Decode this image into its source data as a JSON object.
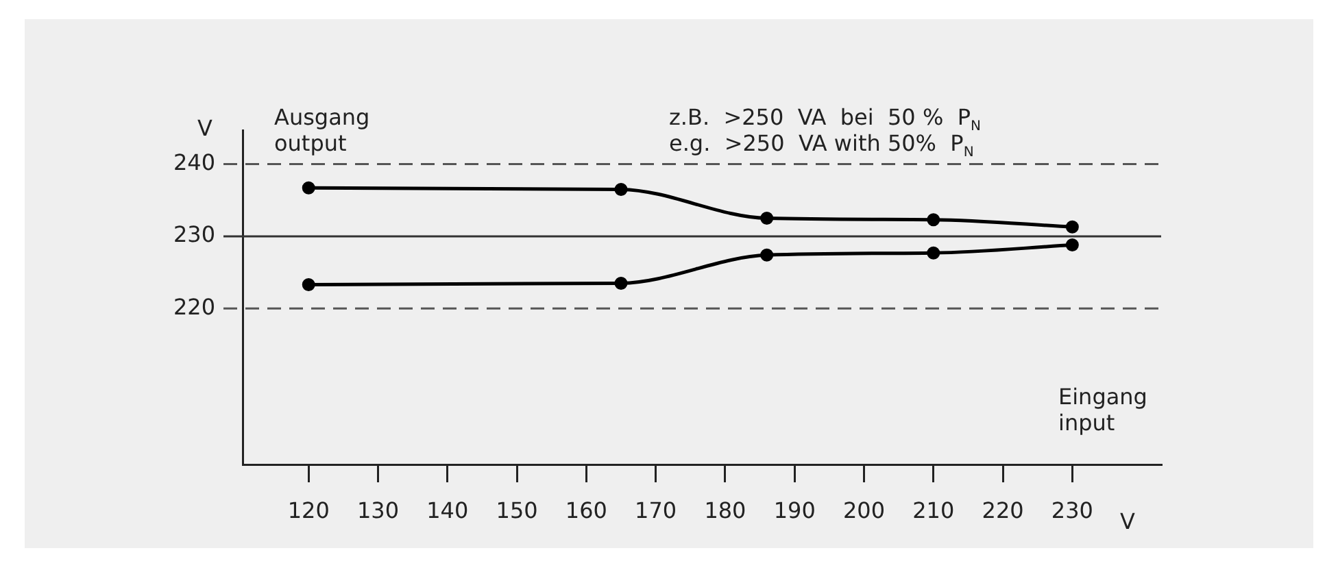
{
  "chart_data": {
    "type": "line",
    "xlabel": "V",
    "ylabel": "V",
    "x": [
      120,
      165,
      186,
      210,
      230
    ],
    "series": [
      {
        "color": "#000000",
        "values": [
          236.7,
          236.5,
          232.5,
          232.3,
          231.3
        ]
      },
      {
        "color": "#000000",
        "values": [
          223.3,
          223.5,
          227.4,
          227.7,
          228.8
        ]
      }
    ],
    "xlim": [
      110.5,
      242.8
    ],
    "xticks": [
      120,
      130,
      140,
      150,
      160,
      170,
      180,
      190,
      200,
      210,
      220,
      230
    ],
    "ylim": [
      198.4,
      244.7
    ],
    "yticks": [
      220,
      230,
      240
    ],
    "ref_lines": [
      {
        "axis": "y",
        "value": 240,
        "color": "#555555",
        "line_style": "dashed"
      },
      {
        "axis": "y",
        "value": 230,
        "color": "#333333",
        "line_style": "solid"
      },
      {
        "axis": "y",
        "value": 220,
        "color": "#555555",
        "line_style": "dashed"
      }
    ],
    "annotations": [
      "Ausgang",
      "output",
      "Eingang",
      "input",
      "z.B.  >250  VA  bei  50 %  P$_{N}$",
      "e.g.  >250  VA with 50%  P$_{N}$"
    ],
    "grid": false,
    "legend": false,
    "marker": "circle",
    "line_style": "solid"
  }
}
